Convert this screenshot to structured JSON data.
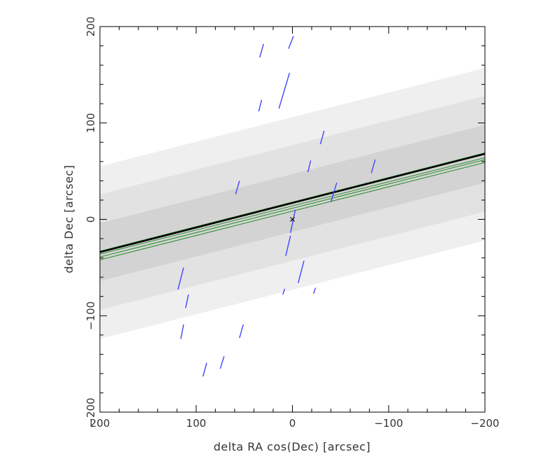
{
  "chart_data": {
    "type": "scatter",
    "xlabel": "delta RA cos(Dec) [arcsec]",
    "ylabel": "delta Dec [arcsec]",
    "xlim": [
      200,
      -200
    ],
    "ylim": [
      -200,
      200
    ],
    "x_ticks": [
      {
        "value": 200,
        "label": "200"
      },
      {
        "value": 100,
        "label": "100"
      },
      {
        "value": 0,
        "label": "0"
      },
      {
        "value": -100,
        "label": "−100"
      },
      {
        "value": -200,
        "label": "−200"
      }
    ],
    "y_ticks": [
      {
        "value": -200,
        "label": "−200"
      },
      {
        "value": -100,
        "label": "−100"
      },
      {
        "value": 0,
        "label": "0"
      },
      {
        "value": 100,
        "label": "100"
      },
      {
        "value": 200,
        "label": "200"
      }
    ],
    "grid": false,
    "center_marker": {
      "x": 0,
      "y": 0,
      "symbol": "x"
    },
    "bands": [
      {
        "color": "#efefef",
        "lower": [
          [
            200,
            -124
          ],
          [
            -200,
            -22
          ]
        ],
        "upper": [
          [
            200,
            55
          ],
          [
            -200,
            157
          ]
        ]
      },
      {
        "color": "#e2e2e2",
        "lower": [
          [
            200,
            -94
          ],
          [
            -200,
            8
          ]
        ],
        "upper": [
          [
            200,
            26
          ],
          [
            -200,
            128
          ]
        ]
      },
      {
        "color": "#d3d3d3",
        "lower": [
          [
            200,
            -64
          ],
          [
            -200,
            38
          ]
        ],
        "upper": [
          [
            200,
            -4
          ],
          [
            -200,
            98
          ]
        ]
      }
    ],
    "main_line": {
      "color": "#000000",
      "points": [
        [
          200,
          -34
        ],
        [
          -200,
          68
        ]
      ]
    },
    "green_lines": {
      "color": "#2a8c2a",
      "lines": [
        [
          [
            200,
            -33
          ],
          [
            -200,
            69
          ]
        ],
        [
          [
            200,
            -36
          ],
          [
            -200,
            64
          ]
        ],
        [
          [
            200,
            -39
          ],
          [
            -200,
            62
          ]
        ],
        [
          [
            200,
            -42
          ],
          [
            -200,
            59
          ]
        ]
      ]
    },
    "segments": {
      "color": "#4444ff",
      "items": [
        [
          [
            4,
            177
          ],
          [
            -1,
            190
          ]
        ],
        [
          [
            34,
            168
          ],
          [
            30,
            182
          ]
        ],
        [
          [
            35,
            112
          ],
          [
            32,
            124
          ]
        ],
        [
          [
            14,
            115
          ],
          [
            3,
            152
          ]
        ],
        [
          [
            -29,
            78
          ],
          [
            -33,
            92
          ]
        ],
        [
          [
            -16,
            49
          ],
          [
            -19,
            61
          ]
        ],
        [
          [
            -82,
            48
          ],
          [
            -86,
            62
          ]
        ],
        [
          [
            -40,
            18
          ],
          [
            -46,
            38
          ]
        ],
        [
          [
            59,
            26
          ],
          [
            55,
            40
          ]
        ],
        [
          [
            2,
            -14
          ],
          [
            -3,
            10
          ]
        ],
        [
          [
            7,
            -38
          ],
          [
            2,
            -17
          ]
        ],
        [
          [
            -6,
            -66
          ],
          [
            -12,
            -43
          ]
        ],
        [
          [
            10,
            -78
          ],
          [
            8,
            -72
          ]
        ],
        [
          [
            -22,
            -77
          ],
          [
            -24,
            -71
          ]
        ],
        [
          [
            119,
            -73
          ],
          [
            113,
            -50
          ]
        ],
        [
          [
            111,
            -92
          ],
          [
            108,
            -78
          ]
        ],
        [
          [
            116,
            -124
          ],
          [
            113,
            -109
          ]
        ],
        [
          [
            55,
            -123
          ],
          [
            51,
            -109
          ]
        ],
        [
          [
            93,
            -163
          ],
          [
            89,
            -149
          ]
        ],
        [
          [
            75,
            -155
          ],
          [
            71,
            -142
          ]
        ]
      ]
    }
  }
}
